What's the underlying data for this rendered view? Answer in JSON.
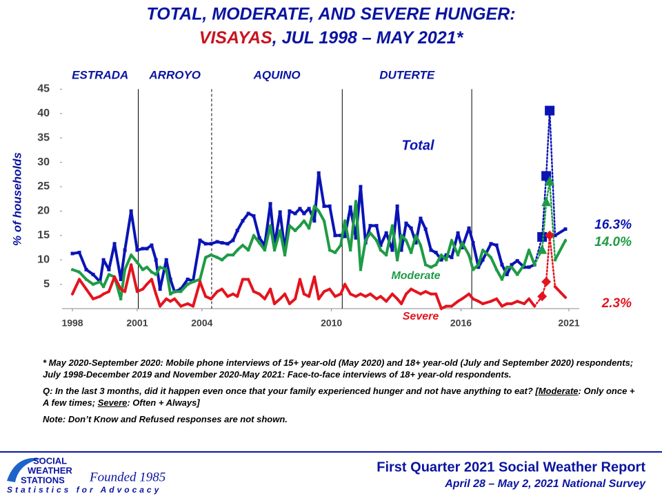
{
  "chart_data": {
    "type": "line",
    "title": "TOTAL, MODERATE, AND SEVERE HUNGER:",
    "subtitle_highlight": "VISAYAS",
    "subtitle_rest": ", JUL 1998 – MAY 2021*",
    "y_label": "% of households",
    "xlim": [
      1997.52,
      2021.48
    ],
    "xticks": [
      1998,
      2001,
      2004,
      2010,
      2016,
      2021
    ],
    "ylim": [
      0,
      45
    ],
    "yticks": [
      5,
      10,
      15,
      20,
      25,
      30,
      35,
      40,
      45
    ],
    "eras": [
      "ESTRADA",
      "ARROYO",
      "AQUINO",
      "DUTERTE"
    ],
    "era_lines": [
      {
        "x": 2001.05,
        "style": "solid"
      },
      {
        "x": 2004.45,
        "style": "dashed"
      },
      {
        "x": 2010.5,
        "style": "solid"
      },
      {
        "x": 2016.5,
        "style": "solid"
      }
    ],
    "phone_survey_range": [
      2019.76,
      2020.11
    ],
    "x": [
      1998.0,
      1998.32,
      1998.64,
      1998.96,
      1999.28,
      1999.44,
      1999.69,
      1999.95,
      2000.24,
      2000.43,
      2000.72,
      2001.0,
      2001.26,
      2001.45,
      2001.67,
      2001.87,
      2002.06,
      2002.35,
      2002.54,
      2002.73,
      2003.02,
      2003.34,
      2003.59,
      2003.91,
      2004.17,
      2004.42,
      2004.71,
      2004.93,
      2005.19,
      2005.44,
      2005.64,
      2005.89,
      2006.15,
      2006.4,
      2006.66,
      2006.91,
      2007.17,
      2007.36,
      2007.62,
      2007.84,
      2008.06,
      2008.32,
      2008.54,
      2008.73,
      2008.96,
      2009.21,
      2009.41,
      2009.66,
      2009.92,
      2010.17,
      2010.43,
      2010.62,
      2010.88,
      2011.13,
      2011.35,
      2011.58,
      2011.8,
      2012.09,
      2012.28,
      2012.54,
      2012.82,
      2013.05,
      2013.24,
      2013.46,
      2013.69,
      2013.91,
      2014.13,
      2014.36,
      2014.61,
      2014.84,
      2015.09,
      2015.32,
      2015.57,
      2015.86,
      2016.05,
      2016.37,
      2016.56,
      2016.81,
      2017.01,
      2017.39,
      2017.65,
      2017.9,
      2018.13,
      2018.35,
      2018.61,
      2018.93,
      2019.15,
      2019.41,
      2019.76,
      2019.95,
      2020.11,
      2020.36,
      2020.84
    ],
    "series": [
      {
        "name": "Total",
        "color": "#0a14b4",
        "marker": "square",
        "values": [
          11.3,
          11.5,
          8,
          7,
          5.5,
          10,
          8,
          13.3,
          6,
          12,
          20,
          12,
          12.3,
          12.3,
          13,
          10,
          4,
          10,
          6,
          3.5,
          4,
          6,
          5.7,
          14,
          13.3,
          13.3,
          13.7,
          13.5,
          13.3,
          14,
          16,
          18,
          19.5,
          19,
          14.5,
          13,
          21.5,
          13,
          19.8,
          12,
          20,
          19.5,
          20.5,
          19.5,
          20.5,
          18,
          27.8,
          21,
          21,
          15,
          15,
          14.8,
          20.8,
          14.5,
          25,
          13.5,
          17,
          17,
          13,
          15.5,
          12,
          21,
          12,
          17.5,
          16.5,
          13.5,
          18.5,
          16.3,
          12,
          11.5,
          10,
          11,
          10.5,
          15.5,
          12.5,
          16.5,
          13.5,
          8.5,
          10,
          13.3,
          13,
          9,
          7,
          9,
          9.8,
          8.5,
          8.5,
          9,
          14.7,
          27.2,
          40.6,
          15,
          16.3
        ],
        "value_labels": [
          null,
          null,
          null,
          null,
          null,
          null,
          null,
          null,
          null,
          null,
          null,
          null,
          null,
          null,
          null,
          null,
          null,
          null,
          null,
          null,
          null,
          null,
          null,
          null,
          null,
          null,
          null,
          null,
          null,
          null,
          null,
          null,
          null,
          null,
          null,
          null,
          null,
          null,
          null,
          null,
          null,
          null,
          null,
          null,
          null,
          null,
          null,
          null,
          null,
          null,
          null,
          null,
          null,
          null,
          null,
          null,
          null,
          null,
          null,
          null,
          null,
          null,
          null,
          null,
          null,
          null,
          null,
          null,
          null,
          null,
          null,
          null,
          null,
          null,
          null,
          null,
          null,
          null,
          null,
          null,
          null,
          null,
          null,
          null,
          null,
          null,
          null,
          null,
          null,
          null,
          null,
          null,
          "16.3%"
        ]
      },
      {
        "name": "Moderate",
        "color": "#1e9b46",
        "marker": "triangle",
        "values": [
          8,
          7.5,
          6,
          5,
          5.5,
          4.5,
          7,
          6.5,
          2,
          8,
          11,
          9.5,
          8,
          8.5,
          7.5,
          7,
          8.5,
          8,
          3,
          3.5,
          3.5,
          5,
          5.5,
          6,
          10.5,
          11,
          10.5,
          10,
          11,
          11,
          12,
          13,
          12,
          15,
          13.5,
          12,
          17,
          12,
          16,
          11,
          17,
          16,
          17,
          18,
          16.5,
          21,
          20,
          18,
          12,
          11.5,
          13,
          18,
          12,
          22,
          8,
          14,
          15.5,
          14,
          12,
          11,
          17,
          10,
          15,
          14,
          11.5,
          15,
          13,
          9,
          8.5,
          9,
          11,
          10,
          14,
          11,
          13.5,
          11,
          8,
          9,
          12,
          10.5,
          8,
          6,
          8.5,
          8.5,
          7,
          9,
          12,
          9,
          12,
          21.8,
          26,
          10,
          14.0
        ],
        "value_labels": [
          null,
          null,
          null,
          null,
          null,
          null,
          null,
          null,
          null,
          null,
          null,
          null,
          null,
          null,
          null,
          null,
          null,
          null,
          null,
          null,
          null,
          null,
          null,
          null,
          null,
          null,
          null,
          null,
          null,
          null,
          null,
          null,
          null,
          null,
          null,
          null,
          null,
          null,
          null,
          null,
          null,
          null,
          null,
          null,
          null,
          null,
          null,
          null,
          null,
          null,
          null,
          null,
          null,
          null,
          null,
          null,
          null,
          null,
          null,
          null,
          null,
          null,
          null,
          null,
          null,
          null,
          null,
          null,
          null,
          null,
          null,
          null,
          null,
          null,
          null,
          null,
          null,
          null,
          null,
          null,
          null,
          null,
          null,
          null,
          null,
          null,
          null,
          null,
          null,
          null,
          null,
          null,
          "14.0%"
        ]
      },
      {
        "name": "Severe",
        "color": "#e3141e",
        "marker": "diamond",
        "values": [
          3,
          6,
          4,
          2,
          2.5,
          3,
          3.5,
          6.5,
          4,
          3.5,
          9,
          3.5,
          4,
          5,
          6,
          3,
          0.5,
          2,
          1.5,
          2,
          0.5,
          1,
          0.5,
          5.5,
          2.5,
          2,
          3.5,
          4,
          2.5,
          3,
          2.5,
          6,
          6,
          3.5,
          3,
          2,
          4,
          1,
          2,
          3,
          1,
          2,
          6,
          3,
          2.5,
          6.5,
          2,
          3.5,
          4,
          2.5,
          3,
          5,
          3,
          2.5,
          3,
          2.5,
          3,
          2,
          2.5,
          1.5,
          3,
          2,
          1,
          3,
          4,
          3.5,
          3,
          3.5,
          3,
          3,
          0,
          0.5,
          0.5,
          1.5,
          2,
          3,
          2,
          1.5,
          1,
          1.5,
          2,
          0.5,
          1,
          1,
          1.5,
          1,
          2,
          0.5,
          2.5,
          5.5,
          15,
          4.5,
          2.3
        ],
        "value_labels": [
          null,
          null,
          null,
          null,
          null,
          null,
          null,
          null,
          null,
          null,
          null,
          null,
          null,
          null,
          null,
          null,
          null,
          null,
          null,
          null,
          null,
          null,
          null,
          null,
          null,
          null,
          null,
          null,
          null,
          null,
          null,
          null,
          null,
          null,
          null,
          null,
          null,
          null,
          null,
          null,
          null,
          null,
          null,
          null,
          null,
          null,
          null,
          null,
          null,
          null,
          null,
          null,
          null,
          null,
          null,
          null,
          null,
          null,
          null,
          null,
          null,
          null,
          null,
          null,
          null,
          null,
          null,
          null,
          null,
          null,
          null,
          null,
          null,
          null,
          null,
          null,
          null,
          null,
          null,
          null,
          null,
          null,
          null,
          null,
          null,
          null,
          null,
          null,
          null,
          null,
          null,
          null,
          "2.3%"
        ]
      }
    ]
  },
  "notes": {
    "note1": "* May 2020-September 2020: Mobile phone interviews of 15+ year-old (May 2020) and 18+ year-old (July and September 2020) respondents; July 1998-December 2019 and November 2020-May 2021: Face-to-face interviews of 18+ year-old respondents.",
    "note2": [
      "Q: In the last 3 months, did it happen even once that your family experienced hunger and not have anything to eat? [",
      "Moderate",
      ": Only once + A few times; ",
      "Severe",
      ": Often + Always]"
    ],
    "note3": "Note: Don’t Know and Refused responses are not shown."
  },
  "footer": {
    "logo_line1": "SOCIAL",
    "logo_line2": "WEATHER",
    "logo_line3": "STATIONS",
    "founded": "Founded 1985",
    "tagline": "Statistics for Advocacy",
    "report_title": "First Quarter 2021 Social Weather Report",
    "report_date": "April 28 – May 2, 2021 National Survey"
  }
}
